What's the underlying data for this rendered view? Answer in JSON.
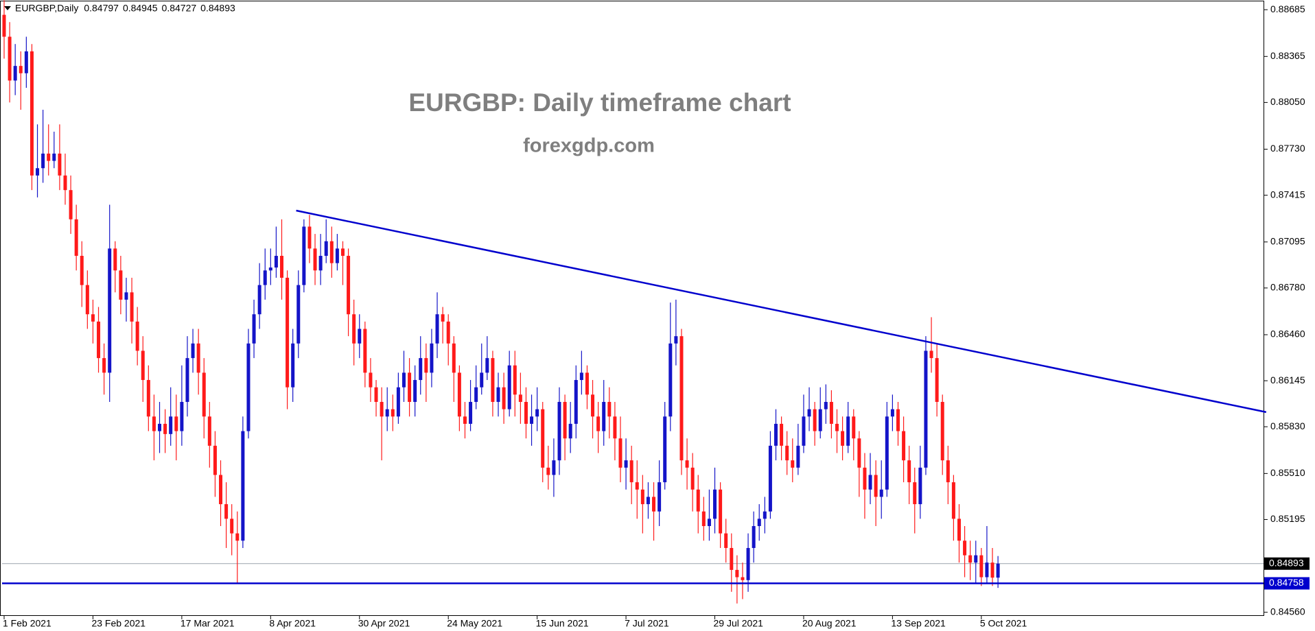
{
  "chart_data": {
    "type": "candlestick",
    "symbol": "EURGBP,Daily",
    "title": "EURGBP: Daily timeframe chart",
    "subtitle": "forexgdp.com",
    "bull_color": "#1414c8",
    "bear_color": "#ff1a1a",
    "ylim": [
      0.84535,
      0.88742
    ],
    "yticks": [
      0.88685,
      0.88365,
      {
        "value": 0.8805,
        "label": "0.88050"
      },
      {
        "value": 0.8773,
        "label": "0.87730"
      },
      0.87415,
      0.87095,
      {
        "value": 0.8678,
        "label": "0.86780"
      },
      {
        "value": 0.8646,
        "label": "0.86460"
      },
      0.86145,
      {
        "value": 0.8583,
        "label": "0.85830"
      },
      {
        "value": 0.8551,
        "label": "0.85510"
      },
      0.85195,
      {
        "value": 0.8456,
        "label": "0.84560"
      }
    ],
    "xticks": [
      {
        "value": 0,
        "label": "1 Feb 2021"
      },
      {
        "value": 16,
        "label": "23 Feb 2021"
      },
      {
        "value": 32,
        "label": "17 Mar 2021"
      },
      {
        "value": 48,
        "label": "8 Apr 2021"
      },
      {
        "value": 64,
        "label": "30 Apr 2021"
      },
      {
        "value": 80,
        "label": "24 May 2021"
      },
      {
        "value": 96,
        "label": "15 Jun 2021"
      },
      {
        "value": 112,
        "label": "7 Jul 2021"
      },
      {
        "value": 128,
        "label": "29 Jul 2021"
      },
      {
        "value": 144,
        "label": "20 Aug 2021"
      },
      {
        "value": 160,
        "label": "13 Sep 2021"
      },
      {
        "value": 176,
        "label": "5 Oct 2021"
      }
    ],
    "support": {
      "value": 0.84758,
      "color": "#0000cd"
    },
    "trendline": {
      "x": [
        52.6,
        227.3
      ],
      "y": [
        0.8731,
        0.8593
      ],
      "color": "#0000cd"
    },
    "ohlc": [
      [
        0.8865,
        0.8875,
        0.8835,
        0.885
      ],
      [
        0.885,
        0.886,
        0.8805,
        0.882
      ],
      [
        0.882,
        0.8845,
        0.881,
        0.883
      ],
      [
        0.883,
        0.884,
        0.88,
        0.8825
      ],
      [
        0.8825,
        0.885,
        0.8815,
        0.884
      ],
      [
        0.884,
        0.8845,
        0.8745,
        0.8755
      ],
      [
        0.8755,
        0.879,
        0.874,
        0.876
      ],
      [
        0.876,
        0.88,
        0.875,
        0.877
      ],
      [
        0.877,
        0.879,
        0.8755,
        0.8765
      ],
      [
        0.8765,
        0.8785,
        0.876,
        0.877
      ],
      [
        0.877,
        0.879,
        0.8745,
        0.8755
      ],
      [
        0.8755,
        0.877,
        0.8735,
        0.8745
      ],
      [
        0.8745,
        0.8755,
        0.8715,
        0.8725
      ],
      [
        0.8725,
        0.8735,
        0.869,
        0.87
      ],
      [
        0.87,
        0.871,
        0.8665,
        0.868
      ],
      [
        0.868,
        0.869,
        0.865,
        0.866
      ],
      [
        0.866,
        0.867,
        0.864,
        0.8655
      ],
      [
        0.8655,
        0.8665,
        0.862,
        0.863
      ],
      [
        0.863,
        0.864,
        0.8605,
        0.862
      ],
      [
        0.862,
        0.8735,
        0.86,
        0.8705
      ],
      [
        0.8705,
        0.871,
        0.8675,
        0.869
      ],
      [
        0.869,
        0.87,
        0.866,
        0.867
      ],
      [
        0.867,
        0.8685,
        0.8655,
        0.8675
      ],
      [
        0.8675,
        0.8685,
        0.864,
        0.8655
      ],
      [
        0.8655,
        0.8665,
        0.8625,
        0.8635
      ],
      [
        0.8635,
        0.8645,
        0.86,
        0.8615
      ],
      [
        0.8615,
        0.8625,
        0.858,
        0.859
      ],
      [
        0.859,
        0.8605,
        0.856,
        0.858
      ],
      [
        0.858,
        0.86,
        0.8565,
        0.8585
      ],
      [
        0.8585,
        0.8595,
        0.8565,
        0.8578
      ],
      [
        0.8578,
        0.861,
        0.857,
        0.859
      ],
      [
        0.859,
        0.8605,
        0.856,
        0.858
      ],
      [
        0.858,
        0.8625,
        0.857,
        0.86
      ],
      [
        0.86,
        0.8645,
        0.859,
        0.863
      ],
      [
        0.863,
        0.865,
        0.862,
        0.864
      ],
      [
        0.864,
        0.865,
        0.8605,
        0.862
      ],
      [
        0.862,
        0.863,
        0.8575,
        0.859
      ],
      [
        0.859,
        0.86,
        0.8555,
        0.857
      ],
      [
        0.857,
        0.858,
        0.8535,
        0.855
      ],
      [
        0.855,
        0.856,
        0.8515,
        0.853
      ],
      [
        0.853,
        0.8545,
        0.85,
        0.852
      ],
      [
        0.852,
        0.853,
        0.8495,
        0.851
      ],
      [
        0.851,
        0.8525,
        0.8476,
        0.8505
      ],
      [
        0.8505,
        0.859,
        0.85,
        0.858
      ],
      [
        0.858,
        0.865,
        0.8575,
        0.864
      ],
      [
        0.864,
        0.867,
        0.863,
        0.866
      ],
      [
        0.866,
        0.8695,
        0.865,
        0.868
      ],
      [
        0.868,
        0.8705,
        0.867,
        0.869
      ],
      [
        0.869,
        0.8705,
        0.868,
        0.8692
      ],
      [
        0.8692,
        0.872,
        0.8685,
        0.87
      ],
      [
        0.87,
        0.8725,
        0.867,
        0.8685
      ],
      [
        0.8685,
        0.869,
        0.8595,
        0.861
      ],
      [
        0.861,
        0.865,
        0.86,
        0.864
      ],
      [
        0.864,
        0.869,
        0.863,
        0.868
      ],
      [
        0.868,
        0.8725,
        0.8675,
        0.872
      ],
      [
        0.872,
        0.8728,
        0.8695,
        0.8705
      ],
      [
        0.8705,
        0.8715,
        0.868,
        0.869
      ],
      [
        0.869,
        0.8715,
        0.868,
        0.87
      ],
      [
        0.87,
        0.8725,
        0.8695,
        0.871
      ],
      [
        0.871,
        0.872,
        0.8685,
        0.8695
      ],
      [
        0.8695,
        0.8715,
        0.869,
        0.8705
      ],
      [
        0.8705,
        0.871,
        0.868,
        0.87
      ],
      [
        0.87,
        0.8705,
        0.8645,
        0.866
      ],
      [
        0.866,
        0.867,
        0.8625,
        0.864
      ],
      [
        0.864,
        0.866,
        0.863,
        0.865
      ],
      [
        0.865,
        0.8655,
        0.861,
        0.862
      ],
      [
        0.862,
        0.863,
        0.86,
        0.861
      ],
      [
        0.861,
        0.8615,
        0.859,
        0.86
      ],
      [
        0.86,
        0.861,
        0.856,
        0.859
      ],
      [
        0.859,
        0.861,
        0.858,
        0.8595
      ],
      [
        0.8595,
        0.8605,
        0.858,
        0.859
      ],
      [
        0.859,
        0.862,
        0.8585,
        0.861
      ],
      [
        0.861,
        0.8635,
        0.86,
        0.862
      ],
      [
        0.862,
        0.863,
        0.859,
        0.86
      ],
      [
        0.86,
        0.8625,
        0.859,
        0.8615
      ],
      [
        0.8615,
        0.8645,
        0.8605,
        0.863
      ],
      [
        0.863,
        0.864,
        0.86,
        0.862
      ],
      [
        0.862,
        0.865,
        0.861,
        0.864
      ],
      [
        0.864,
        0.8675,
        0.863,
        0.866
      ],
      [
        0.866,
        0.8665,
        0.864,
        0.8655
      ],
      [
        0.8655,
        0.866,
        0.8625,
        0.864
      ],
      [
        0.864,
        0.8645,
        0.86,
        0.862
      ],
      [
        0.862,
        0.8625,
        0.858,
        0.859
      ],
      [
        0.859,
        0.86,
        0.8575,
        0.8585
      ],
      [
        0.8585,
        0.8615,
        0.858,
        0.86
      ],
      [
        0.86,
        0.8625,
        0.8595,
        0.861
      ],
      [
        0.861,
        0.864,
        0.8605,
        0.862
      ],
      [
        0.862,
        0.8645,
        0.8615,
        0.863
      ],
      [
        0.863,
        0.8635,
        0.859,
        0.86
      ],
      [
        0.86,
        0.862,
        0.859,
        0.861
      ],
      [
        0.861,
        0.862,
        0.8585,
        0.8595
      ],
      [
        0.8595,
        0.8635,
        0.859,
        0.8625
      ],
      [
        0.8625,
        0.8635,
        0.859,
        0.8605
      ],
      [
        0.8605,
        0.862,
        0.8585,
        0.86
      ],
      [
        0.86,
        0.861,
        0.8575,
        0.8585
      ],
      [
        0.8585,
        0.8605,
        0.857,
        0.859
      ],
      [
        0.859,
        0.861,
        0.858,
        0.8595
      ],
      [
        0.8595,
        0.86,
        0.8545,
        0.8555
      ],
      [
        0.8555,
        0.857,
        0.854,
        0.855
      ],
      [
        0.855,
        0.8575,
        0.8535,
        0.856
      ],
      [
        0.856,
        0.861,
        0.855,
        0.86
      ],
      [
        0.86,
        0.8605,
        0.856,
        0.8575
      ],
      [
        0.8575,
        0.86,
        0.8565,
        0.8585
      ],
      [
        0.8585,
        0.8625,
        0.8575,
        0.8615
      ],
      [
        0.8615,
        0.8635,
        0.8605,
        0.862
      ],
      [
        0.862,
        0.8625,
        0.8595,
        0.8605
      ],
      [
        0.8605,
        0.8615,
        0.8575,
        0.859
      ],
      [
        0.859,
        0.86,
        0.8565,
        0.858
      ],
      [
        0.858,
        0.8615,
        0.857,
        0.86
      ],
      [
        0.86,
        0.861,
        0.8575,
        0.859
      ],
      [
        0.859,
        0.86,
        0.856,
        0.8575
      ],
      [
        0.8575,
        0.859,
        0.8545,
        0.8555
      ],
      [
        0.8555,
        0.8575,
        0.854,
        0.856
      ],
      [
        0.856,
        0.857,
        0.853,
        0.8545
      ],
      [
        0.8545,
        0.856,
        0.852,
        0.854
      ],
      [
        0.854,
        0.855,
        0.851,
        0.853
      ],
      [
        0.853,
        0.8545,
        0.852,
        0.8535
      ],
      [
        0.8535,
        0.8545,
        0.8505,
        0.8525
      ],
      [
        0.8525,
        0.856,
        0.8515,
        0.8545
      ],
      [
        0.8545,
        0.86,
        0.854,
        0.859
      ],
      [
        0.859,
        0.8668,
        0.858,
        0.864
      ],
      [
        0.864,
        0.867,
        0.8625,
        0.8645
      ],
      [
        0.8645,
        0.865,
        0.855,
        0.856
      ],
      [
        0.856,
        0.8575,
        0.854,
        0.8555
      ],
      [
        0.8555,
        0.8565,
        0.8525,
        0.854
      ],
      [
        0.854,
        0.855,
        0.851,
        0.8525
      ],
      [
        0.8525,
        0.8535,
        0.8505,
        0.8515
      ],
      [
        0.8515,
        0.854,
        0.8505,
        0.852
      ],
      [
        0.852,
        0.8555,
        0.851,
        0.854
      ],
      [
        0.854,
        0.8545,
        0.85,
        0.851
      ],
      [
        0.851,
        0.852,
        0.849,
        0.85
      ],
      [
        0.85,
        0.851,
        0.847,
        0.8485
      ],
      [
        0.8485,
        0.8495,
        0.8462,
        0.848
      ],
      [
        0.848,
        0.849,
        0.8465,
        0.8478
      ],
      [
        0.8478,
        0.851,
        0.847,
        0.85
      ],
      [
        0.85,
        0.8525,
        0.849,
        0.8515
      ],
      [
        0.8515,
        0.853,
        0.8505,
        0.852
      ],
      [
        0.852,
        0.8535,
        0.851,
        0.8525
      ],
      [
        0.8525,
        0.858,
        0.852,
        0.857
      ],
      [
        0.857,
        0.8595,
        0.856,
        0.8585
      ],
      [
        0.8585,
        0.859,
        0.856,
        0.857
      ],
      [
        0.857,
        0.858,
        0.855,
        0.856
      ],
      [
        0.856,
        0.8575,
        0.8545,
        0.8555
      ],
      [
        0.8555,
        0.8585,
        0.855,
        0.857
      ],
      [
        0.857,
        0.8605,
        0.8565,
        0.859
      ],
      [
        0.859,
        0.861,
        0.858,
        0.8595
      ],
      [
        0.8595,
        0.86,
        0.857,
        0.858
      ],
      [
        0.858,
        0.861,
        0.8575,
        0.8595
      ],
      [
        0.8595,
        0.8612,
        0.8585,
        0.86
      ],
      [
        0.86,
        0.8608,
        0.8575,
        0.8585
      ],
      [
        0.8585,
        0.8595,
        0.8565,
        0.858
      ],
      [
        0.858,
        0.859,
        0.856,
        0.857
      ],
      [
        0.857,
        0.86,
        0.8565,
        0.859
      ],
      [
        0.859,
        0.8595,
        0.856,
        0.8575
      ],
      [
        0.8575,
        0.858,
        0.8535,
        0.8555
      ],
      [
        0.8555,
        0.8565,
        0.852,
        0.854
      ],
      [
        0.854,
        0.8565,
        0.853,
        0.855
      ],
      [
        0.855,
        0.856,
        0.8515,
        0.8535
      ],
      [
        0.8535,
        0.856,
        0.852,
        0.854
      ],
      [
        0.854,
        0.86,
        0.8535,
        0.859
      ],
      [
        0.859,
        0.8605,
        0.858,
        0.8595
      ],
      [
        0.8595,
        0.86,
        0.857,
        0.858
      ],
      [
        0.858,
        0.859,
        0.8545,
        0.856
      ],
      [
        0.856,
        0.857,
        0.853,
        0.8545
      ],
      [
        0.8545,
        0.8555,
        0.851,
        0.853
      ],
      [
        0.853,
        0.857,
        0.852,
        0.8555
      ],
      [
        0.8555,
        0.8645,
        0.855,
        0.8635
      ],
      [
        0.8635,
        0.8658,
        0.862,
        0.863
      ],
      [
        0.863,
        0.864,
        0.859,
        0.86
      ],
      [
        0.86,
        0.8605,
        0.855,
        0.856
      ],
      [
        0.856,
        0.857,
        0.853,
        0.8545
      ],
      [
        0.8545,
        0.855,
        0.8505,
        0.852
      ],
      [
        0.852,
        0.853,
        0.849,
        0.8505
      ],
      [
        0.8505,
        0.8515,
        0.848,
        0.8495
      ],
      [
        0.8495,
        0.8505,
        0.8478,
        0.849
      ],
      [
        0.849,
        0.8505,
        0.8476,
        0.8495
      ],
      [
        0.8495,
        0.85,
        0.8474,
        0.848
      ],
      [
        0.848,
        0.8515,
        0.8476,
        0.849
      ],
      [
        0.849,
        0.85,
        0.8474,
        0.84797
      ],
      [
        0.84797,
        0.84945,
        0.84727,
        0.84893
      ]
    ]
  }
}
